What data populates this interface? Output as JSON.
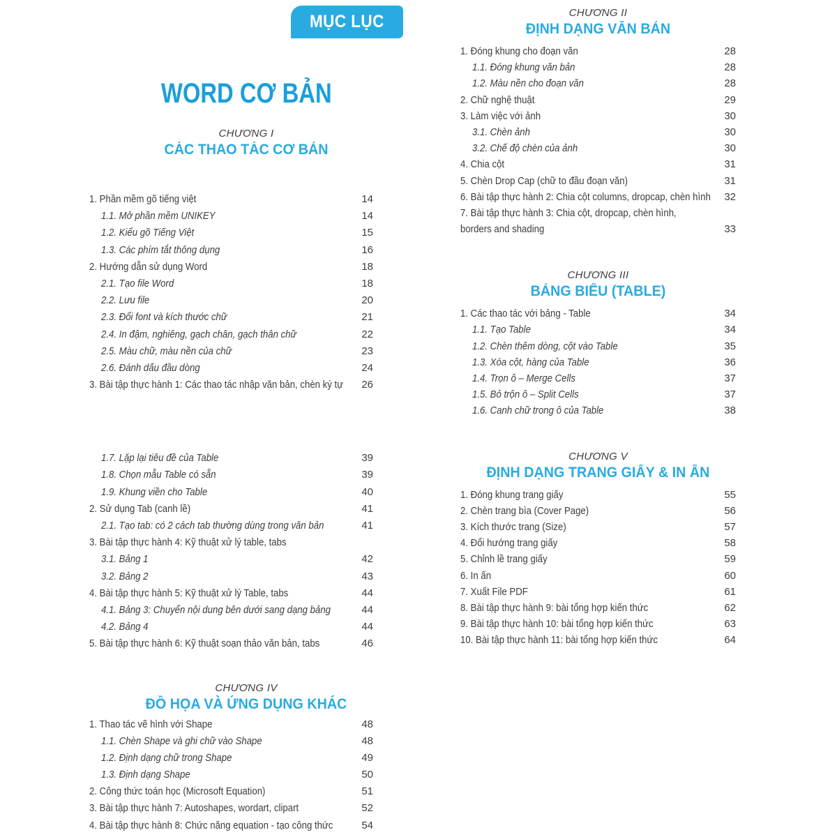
{
  "page": {
    "badge": "MỤC LỤC",
    "title": "WORD CƠ BẢN"
  },
  "colors": {
    "accent": "#29abe2",
    "title_blue": "#1b9fda",
    "text": "#3c3c3c"
  },
  "columns": {
    "left": {
      "blocks": [
        {
          "chapter": "CHƯƠNG I",
          "heading": "CÁC THAO TÁC CƠ BẢN",
          "items": [
            {
              "label": "1. Phần mềm gõ tiếng việt",
              "page": "14",
              "level": 1
            },
            {
              "label": "1.1. Mở phần mềm UNIKEY",
              "page": "14",
              "level": 2
            },
            {
              "label": "1.2. Kiểu gõ Tiếng Việt",
              "page": "15",
              "level": 2
            },
            {
              "label": "1.3. Các phím tắt thông dụng",
              "page": "16",
              "level": 2
            },
            {
              "label": "2. Hướng dẫn sử dụng Word",
              "page": "18",
              "level": 1
            },
            {
              "label": "2.1. Tạo file Word",
              "page": "18",
              "level": 2
            },
            {
              "label": "2.2. Lưu file",
              "page": "20",
              "level": 2
            },
            {
              "label": "2.3. Đổi font và kích thước chữ",
              "page": "21",
              "level": 2
            },
            {
              "label": "2.4. In đậm, nghiêng, gạch chân, gạch thân chữ",
              "page": "22",
              "level": 2
            },
            {
              "label": "2.5. Màu chữ, màu nền của chữ",
              "page": "23",
              "level": 2
            },
            {
              "label": "2.6. Đánh dấu đầu dòng",
              "page": "24",
              "level": 2
            },
            {
              "label": "3. Bài tập thực hành 1: Các thao tác nhập văn bản, chèn ký tự",
              "page": "26",
              "level": 1
            }
          ]
        },
        {
          "chapter": "",
          "heading": "",
          "items": [
            {
              "label": "1.7. Lặp lại tiêu đề của Table",
              "page": "39",
              "level": 2
            },
            {
              "label": "1.8. Chọn mẫu Table có sẵn",
              "page": "39",
              "level": 2
            },
            {
              "label": "1.9. Khung viền cho Table",
              "page": "40",
              "level": 2
            },
            {
              "label": "2. Sử dụng Tab (canh lề)",
              "page": "41",
              "level": 1
            },
            {
              "label": "2.1. Tạo tab: có 2 cách tab thường dùng trong văn bản",
              "page": "41",
              "level": 2
            },
            {
              "label": "3. Bài tập thực hành 4: Kỹ thuật xử lý table, tabs",
              "page": "",
              "level": 1
            },
            {
              "label": "3.1. Bảng 1",
              "page": "42",
              "level": 2
            },
            {
              "label": "3.2. Bảng 2",
              "page": "43",
              "level": 2
            },
            {
              "label": "4. Bài tập thực hành 5: Kỹ thuật xử lý Table, tabs",
              "page": "44",
              "level": 1
            },
            {
              "label": "4.1. Bảng 3: Chuyển nội dung bên dưới sang dạng bảng",
              "page": "44",
              "level": 2
            },
            {
              "label": "4.2. Bảng 4",
              "page": "44",
              "level": 2
            },
            {
              "label": "5. Bài tập thực hành 6: Kỹ thuật soạn thảo văn bản, tabs",
              "page": "46",
              "level": 1
            }
          ]
        },
        {
          "chapter": "CHƯƠNG IV",
          "heading": "ĐỒ HỌA VÀ ỨNG DỤNG KHÁC",
          "items": [
            {
              "label": "1. Thao tác vẽ hình với Shape",
              "page": "48",
              "level": 1
            },
            {
              "label": "1.1. Chèn Shape và ghi chữ vào Shape",
              "page": "48",
              "level": 2
            },
            {
              "label": "1.2. Định dạng chữ trong Shape",
              "page": "49",
              "level": 2
            },
            {
              "label": "1.3. Định dạng Shape",
              "page": "50",
              "level": 2
            },
            {
              "label": "2. Công thức toán học (Microsoft Equation)",
              "page": "51",
              "level": 1
            },
            {
              "label": "3. Bài tập thực hành 7: Autoshapes, wordart, clipart",
              "page": "52",
              "level": 1
            },
            {
              "label": "4. Bài tập thực hành 8: Chức năng equation - tạo công thức",
              "page": "54",
              "level": 1
            }
          ]
        }
      ]
    },
    "right": {
      "blocks": [
        {
          "chapter": "CHƯƠNG II",
          "heading": "ĐỊNH DẠNG VĂN BẢN",
          "items": [
            {
              "label": "1. Đóng khung cho đoạn văn",
              "page": "28",
              "level": 1
            },
            {
              "label": "1.1. Đóng khung văn bản",
              "page": "28",
              "level": 2
            },
            {
              "label": "1.2. Màu nền cho đoạn văn",
              "page": "28",
              "level": 2
            },
            {
              "label": "2. Chữ nghệ thuật",
              "page": "29",
              "level": 1
            },
            {
              "label": "3. Làm việc với ảnh",
              "page": "30",
              "level": 1
            },
            {
              "label": "3.1. Chèn ảnh",
              "page": "30",
              "level": 2
            },
            {
              "label": "3.2. Chế độ chèn của ảnh",
              "page": "30",
              "level": 2
            },
            {
              "label": "4. Chia cột",
              "page": "31",
              "level": 1
            },
            {
              "label": "5. Chèn Drop Cap (chữ to đầu đoạn văn)",
              "page": "31",
              "level": 1
            },
            {
              "label": "6. Bài tập thực hành 2: Chia cột columns, dropcap, chèn hình",
              "page": "32",
              "level": 1
            },
            {
              "label": "7. Bài tập thực hành 3: Chia cột, dropcap, chèn hình,",
              "label2": "borders and shading",
              "page": "33",
              "level": 1
            }
          ]
        },
        {
          "chapter": "CHƯƠNG III",
          "heading": "BẢNG BIỂU (TABLE)",
          "items": [
            {
              "label": "1. Các thao tác với bảng - Table",
              "page": "34",
              "level": 1
            },
            {
              "label": "1.1. Tạo Table",
              "page": "34",
              "level": 2
            },
            {
              "label": "1.2. Chèn thêm dòng, cột vào Table",
              "page": "35",
              "level": 2
            },
            {
              "label": "1.3. Xóa cột, hàng của Table",
              "page": "36",
              "level": 2
            },
            {
              "label": "1.4. Trọn ô – Merge Cells",
              "page": "37",
              "level": 2
            },
            {
              "label": "1.5. Bỏ trộn ô – Split Cells",
              "page": "37",
              "level": 2
            },
            {
              "label": "1.6. Canh chữ trong ô của Table",
              "page": "38",
              "level": 2
            }
          ]
        },
        {
          "chapter": "CHƯƠNG V",
          "heading": "ĐỊNH DẠNG TRANG GIẤY & IN ẤN",
          "items": [
            {
              "label": "1. Đóng khung trang giấy",
              "page": "55",
              "level": 1
            },
            {
              "label": "2. Chèn trang bìa (Cover Page)",
              "page": "56",
              "level": 1
            },
            {
              "label": "3. Kích thước trang (Size)",
              "page": "57",
              "level": 1
            },
            {
              "label": "4. Đổi hướng trang giấy",
              "page": "58",
              "level": 1
            },
            {
              "label": "5. Chỉnh lề trang giấy",
              "page": "59",
              "level": 1
            },
            {
              "label": "6. In ấn",
              "page": "60",
              "level": 1
            },
            {
              "label": "7. Xuất File PDF",
              "page": "61",
              "level": 1
            },
            {
              "label": "8. Bài tập thực hành 9: bài tổng hợp kiến thức",
              "page": "62",
              "level": 1
            },
            {
              "label": "9. Bài tập thực hành 10: bài tổng hợp kiến thức",
              "page": "63",
              "level": 1
            },
            {
              "label": "10. Bài tập thực hành 11: bài tổng hợp kiến thức",
              "page": "64",
              "level": 1
            }
          ]
        }
      ]
    }
  }
}
